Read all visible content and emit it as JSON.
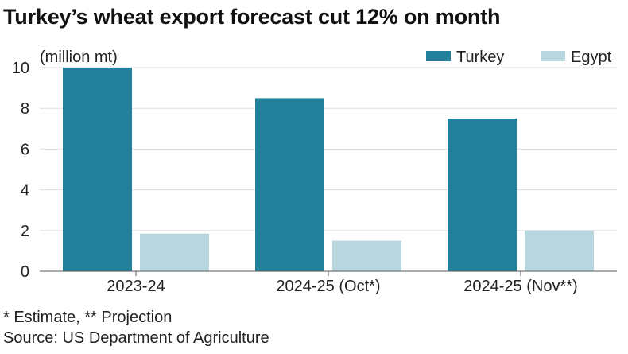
{
  "title": "Turkey’s wheat export forecast cut 12% on month",
  "unit_label": "(million mt)",
  "footnotes": {
    "note": "* Estimate, ** Projection",
    "source": "Source: US Department of Agriculture"
  },
  "colors": {
    "turkey": "#23809a",
    "egypt": "#b8d6de",
    "grid": "#dddddd",
    "axis": "#555555"
  },
  "chart_data": {
    "type": "bar",
    "categories": [
      "2023-24",
      "2024-25 (Oct*)",
      "2024-25 (Nov**)"
    ],
    "series": [
      {
        "name": "Turkey",
        "values": [
          10.0,
          8.5,
          7.5
        ]
      },
      {
        "name": "Egypt",
        "values": [
          1.85,
          1.5,
          2.0
        ]
      }
    ],
    "ylim": [
      0,
      10
    ],
    "yticks": [
      0,
      2,
      4,
      6,
      8,
      10
    ],
    "grid": true,
    "legend": "top-right"
  }
}
